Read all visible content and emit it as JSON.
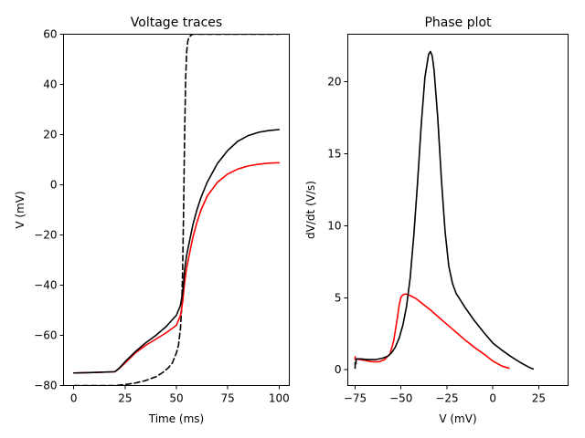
{
  "chart_data": [
    {
      "type": "line",
      "title": "Voltage traces",
      "xlabel": "Time (ms)",
      "ylabel": "V (mV)",
      "xlim": [
        -5,
        105
      ],
      "ylim": [
        -80,
        60
      ],
      "xticks": [
        0,
        25,
        50,
        75,
        100
      ],
      "yticks": [
        -80,
        -60,
        -40,
        -20,
        0,
        20,
        40,
        60
      ],
      "grid": false,
      "series": [
        {
          "color": "#000000",
          "style": "dashed",
          "x": [
            0,
            10,
            20,
            25,
            30,
            35,
            40,
            43,
            46,
            48,
            50,
            51,
            52,
            52.5,
            53,
            53.5,
            54,
            54.5,
            55,
            55.5,
            56,
            57,
            58,
            60,
            65,
            70,
            80,
            90,
            100
          ],
          "y": [
            -80,
            -80,
            -80,
            -79.6,
            -79,
            -78,
            -76.5,
            -75,
            -73,
            -71,
            -67,
            -64,
            -57,
            -50,
            -35,
            -10,
            20,
            42,
            53,
            57,
            58.5,
            59.5,
            60,
            60,
            60,
            60,
            60,
            60,
            60
          ]
        },
        {
          "color": "#ff0000",
          "style": "solid",
          "x": [
            0,
            10,
            20,
            22,
            25,
            30,
            35,
            40,
            45,
            50,
            52,
            53,
            53.5,
            54,
            54.5,
            55,
            56,
            57,
            58,
            60,
            62,
            65,
            70,
            75,
            80,
            85,
            90,
            95,
            100
          ],
          "y": [
            -75,
            -74.8,
            -74.5,
            -73.3,
            -71,
            -67,
            -64,
            -61.5,
            -59,
            -56,
            -52,
            -47,
            -43,
            -39,
            -36,
            -33,
            -29,
            -25,
            -21,
            -15,
            -10,
            -4.5,
            1,
            4.3,
            6.3,
            7.5,
            8.2,
            8.6,
            8.8
          ]
        },
        {
          "color": "#000000",
          "style": "solid",
          "x": [
            0,
            10,
            20,
            22,
            25,
            30,
            35,
            40,
            45,
            50,
            52,
            53,
            53.5,
            54,
            54.5,
            55,
            56,
            57,
            58,
            60,
            62,
            65,
            70,
            75,
            80,
            85,
            90,
            95,
            100
          ],
          "y": [
            -75,
            -74.8,
            -74.5,
            -73.2,
            -70.5,
            -66.5,
            -63,
            -60,
            -56.5,
            -52,
            -48,
            -43,
            -39,
            -34,
            -31,
            -28,
            -24,
            -20,
            -16,
            -10,
            -5,
            1,
            8.5,
            13.7,
            17.4,
            19.6,
            20.9,
            21.6,
            22
          ]
        }
      ]
    },
    {
      "type": "line",
      "title": "Phase plot",
      "xlabel": "V (mV)",
      "ylabel": "dV/dt (V/s)",
      "xlim": [
        -79,
        41
      ],
      "ylim": [
        -1.1,
        23.3
      ],
      "xticks": [
        -75,
        -50,
        -25,
        0,
        25
      ],
      "yticks": [
        0,
        5,
        10,
        15,
        20
      ],
      "grid": false,
      "series": [
        {
          "color": "#ff0000",
          "style": "solid",
          "x": [
            -75,
            -75,
            -74.6,
            -73,
            -70,
            -66,
            -62,
            -59,
            -56,
            -54,
            -52,
            -51,
            -50,
            -49,
            -48,
            -47,
            -45,
            -42,
            -38,
            -34,
            -30,
            -25,
            -20,
            -15,
            -10,
            -5,
            0,
            5,
            8.8
          ],
          "y": [
            0.9,
            0.7,
            0.75,
            0.72,
            0.65,
            0.55,
            0.55,
            0.7,
            1.1,
            2,
            3.6,
            4.5,
            5.05,
            5.2,
            5.25,
            5.25,
            5.15,
            4.95,
            4.55,
            4.15,
            3.7,
            3.15,
            2.6,
            2.05,
            1.55,
            1.1,
            0.6,
            0.25,
            0.1
          ]
        },
        {
          "color": "#000000",
          "style": "solid",
          "x": [
            -75,
            -75,
            -74.6,
            -74.4,
            -72,
            -68,
            -64,
            -60,
            -57,
            -55,
            -53,
            -51,
            -49,
            -47,
            -45,
            -43,
            -41,
            -39,
            -37,
            -35,
            -34,
            -33,
            -32,
            -30,
            -28,
            -26,
            -24,
            -22,
            -20,
            -18,
            -15,
            -10,
            -5,
            0,
            5,
            10,
            15,
            20,
            22
          ],
          "y": [
            0.1,
            0.5,
            0.4,
            0.75,
            0.75,
            0.7,
            0.7,
            0.8,
            0.95,
            1.2,
            1.6,
            2.2,
            3.1,
            4.4,
            6.4,
            9.4,
            13,
            17,
            20.3,
            21.9,
            22.1,
            21.8,
            20.8,
            17.5,
            13.2,
            9.6,
            7.2,
            6,
            5.3,
            4.9,
            4.3,
            3.4,
            2.6,
            1.85,
            1.35,
            0.9,
            0.5,
            0.15,
            0.05
          ]
        }
      ]
    }
  ]
}
